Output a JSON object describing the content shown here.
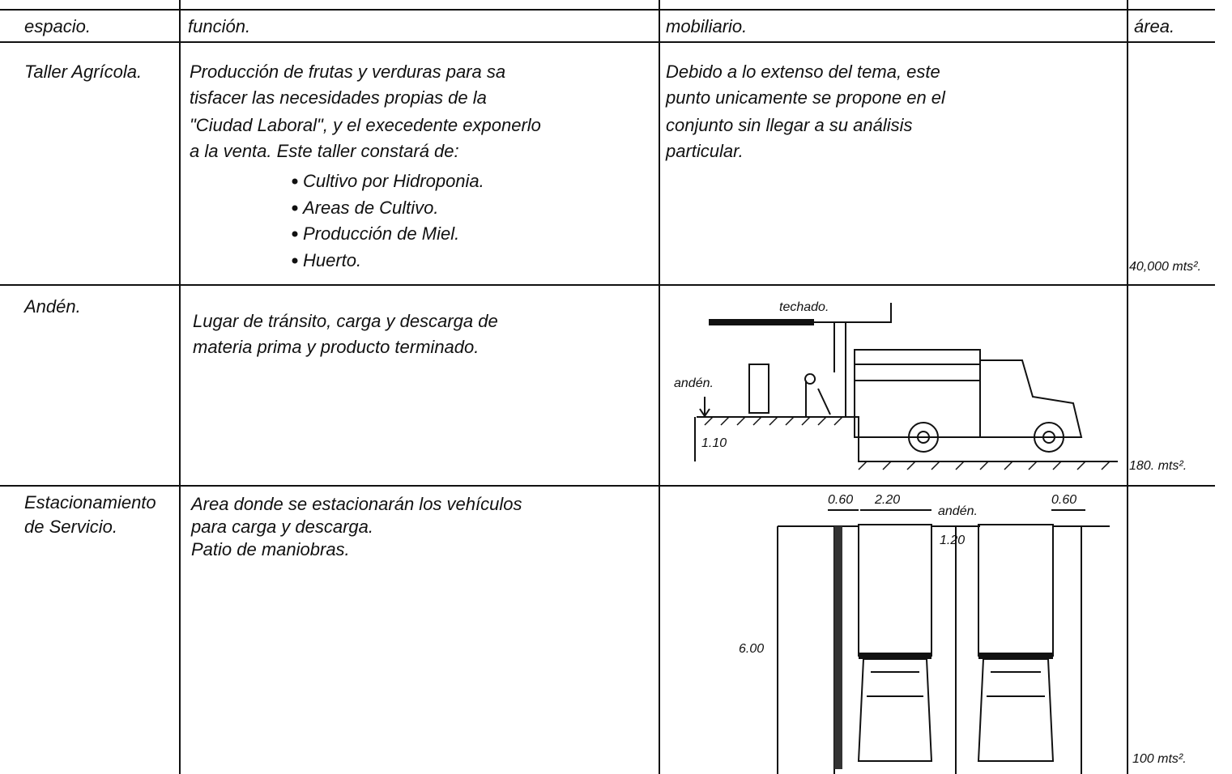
{
  "header": {
    "space": "espacio.",
    "function": "función.",
    "furniture": "mobiliario.",
    "area": "área."
  },
  "rows": [
    {
      "space": [
        "Taller Agrícola."
      ],
      "function": [
        "Producción de frutas y verduras para sa",
        "tisfacer las necesidades propias de la",
        "\"Ciudad Laboral\", y el execedente exponerlo",
        "a la venta. Este taller constará de:"
      ],
      "items": [
        "Cultivo por Hidroponia.",
        "Areas de Cultivo.",
        "Producción de Miel.",
        "Huerto."
      ],
      "furniture": [
        "Debido a lo extenso del tema, este",
        "punto unicamente se propone en el",
        "conjunto sin llegar a su análisis",
        "particular."
      ],
      "area": "40,000 mts²."
    },
    {
      "space": [
        "Andén."
      ],
      "function": [
        "Lugar de tránsito, carga y descarga de",
        "materia prima y producto terminado."
      ],
      "drawing_labels": [
        "techado.",
        "andén.",
        "1.10"
      ],
      "area": "180. mts²."
    },
    {
      "space": [
        "Estacionamiento",
        "de Servicio."
      ],
      "function": [
        "Area donde se estacionarán los vehículos",
        "para carga y descarga.",
        "Patio de maniobras."
      ],
      "drawing_labels": [
        "0.60",
        "2.20",
        "andén.",
        "0.60",
        "1.20",
        "6.00"
      ],
      "area": "100 mts²."
    }
  ]
}
